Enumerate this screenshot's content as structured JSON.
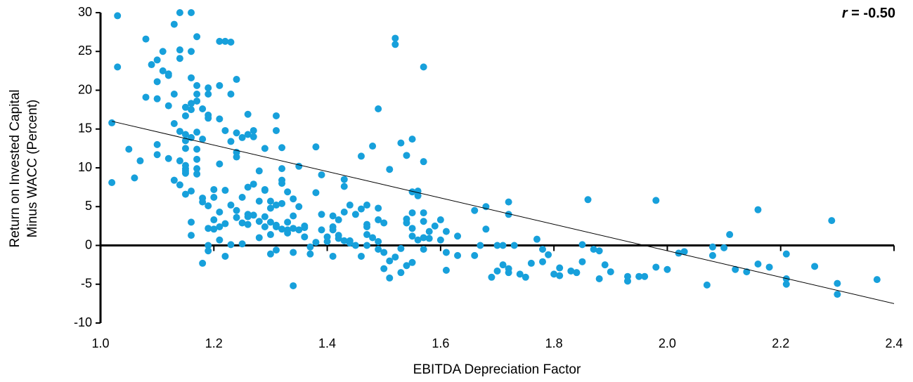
{
  "chart_data": {
    "type": "scatter",
    "xlabel": "EBITDA Depreciation Factor",
    "ylabel": [
      "Return on Invested Capital",
      "Minus WACC (Percent)"
    ],
    "annotation": {
      "symbol": "r",
      "text": "= -0.50"
    },
    "xlim": [
      1,
      2.4
    ],
    "xticks": [
      {
        "value": 1,
        "label": "1.0"
      },
      1.2,
      1.4,
      1.6,
      1.8,
      {
        "value": 2,
        "label": "2.0"
      },
      2.2,
      2.4
    ],
    "ylim": [
      -10,
      30
    ],
    "yticks": [
      -10,
      -5,
      0,
      5,
      10,
      15,
      20,
      25,
      30
    ],
    "trendline": {
      "x": [
        1.02,
        2.4
      ],
      "y": [
        16,
        -7.5
      ]
    },
    "series": [
      {
        "color": "#17a0db",
        "x": [
          1.02,
          1.02,
          1.03,
          1.05,
          1.06,
          1.03,
          1.07,
          1.08,
          1.08,
          1.1,
          1.09,
          1.1,
          1.1,
          1.1,
          1.1,
          1.11,
          1.11,
          1.12,
          1.12,
          1.12,
          1.13,
          1.12,
          1.13,
          1.13,
          1.13,
          1.14,
          1.14,
          1.14,
          1.14,
          1.14,
          1.14,
          1.15,
          1.15,
          1.15,
          1.15,
          1.15,
          1.15,
          1.15,
          1.15,
          1.15,
          1.15,
          1.16,
          1.16,
          1.16,
          1.16,
          1.16,
          1.16,
          1.16,
          1.16,
          1.16,
          1.17,
          1.17,
          1.17,
          1.17,
          1.17,
          1.17,
          1.17,
          1.17,
          1.17,
          1.18,
          1.18,
          1.18,
          1.18,
          1.18,
          1.19,
          1.19,
          1.19,
          1.19,
          1.19,
          1.19,
          1.19,
          1.19,
          1.2,
          1.2,
          1.2,
          1.2,
          1.21,
          1.21,
          1.21,
          1.21,
          1.21,
          1.21,
          1.21,
          1.22,
          1.22,
          1.22,
          1.22,
          1.22,
          1.23,
          1.23,
          1.23,
          1.23,
          1.23,
          1.24,
          1.24,
          1.24,
          1.24,
          1.24,
          1.24,
          1.25,
          1.25,
          1.25,
          1.25,
          1.26,
          1.26,
          1.26,
          1.26,
          1.26,
          1.26,
          1.27,
          1.27,
          1.27,
          1.27,
          1.28,
          1.28,
          1.28,
          1.28,
          1.29,
          1.29,
          1.29,
          1.29,
          1.29,
          1.3,
          1.3,
          1.3,
          1.3,
          1.3,
          1.31,
          1.31,
          1.31,
          1.31,
          1.31,
          1.31,
          1.32,
          1.32,
          1.32,
          1.32,
          1.32,
          1.32,
          1.33,
          1.33,
          1.33,
          1.33,
          1.34,
          1.34,
          1.34,
          1.35,
          1.35,
          1.49,
          1.52,
          1.52,
          1.57,
          1.57,
          1.48,
          1.51,
          1.46,
          1.38,
          1.35,
          1.39,
          1.43,
          1.43,
          1.53,
          1.54,
          1.55,
          1.55,
          1.56,
          1.56,
          1.55,
          1.57,
          1.47,
          1.46,
          1.45,
          1.44,
          1.43,
          1.41,
          1.42,
          1.39,
          1.38,
          1.36,
          1.36,
          1.39,
          1.41,
          1.4,
          1.41,
          1.42,
          1.42,
          1.43,
          1.44,
          1.44,
          1.45,
          1.46,
          1.47,
          1.47,
          1.47,
          1.48,
          1.49,
          1.49,
          1.5,
          1.5,
          1.5,
          1.51,
          1.51,
          1.52,
          1.53,
          1.54,
          1.54,
          1.55,
          1.54,
          1.55,
          1.57,
          1.57,
          1.58,
          1.58,
          1.57,
          1.59,
          1.55,
          1.56,
          1.49,
          1.49,
          1.53,
          1.47,
          1.34,
          1.34,
          1.36,
          1.37,
          1.37,
          1.38,
          1.4,
          1.41,
          1.6,
          1.61,
          1.61,
          1.6,
          1.61,
          1.63,
          1.63,
          1.66,
          1.66,
          1.67,
          1.68,
          1.68,
          1.69,
          1.7,
          1.7,
          1.71,
          1.71,
          1.72,
          1.72,
          1.72,
          1.72,
          1.73,
          1.74,
          1.75,
          1.76,
          1.77,
          1.78,
          1.78,
          1.79,
          1.8,
          1.81,
          1.81,
          1.83,
          1.84,
          1.85,
          1.85,
          1.86,
          1.87,
          1.88,
          1.88,
          1.89,
          1.9,
          1.93,
          1.93,
          1.95,
          1.96,
          1.98,
          1.98,
          2.0,
          2.02,
          2.03,
          2.07,
          2.08,
          2.08,
          2.1,
          2.11,
          2.12,
          2.14,
          2.16,
          2.16,
          2.18,
          2.21,
          2.21,
          2.21,
          2.26,
          2.29,
          2.3,
          2.3,
          2.37
        ],
        "y": [
          8.1,
          15.8,
          23.0,
          12.4,
          8.7,
          29.6,
          10.9,
          26.6,
          19.1,
          18.9,
          23.3,
          13.0,
          11.7,
          21.1,
          23.9,
          25.0,
          22.5,
          22.1,
          18.0,
          11.2,
          28.5,
          21.9,
          15.7,
          8.4,
          19.5,
          14.7,
          25.2,
          30.0,
          24.1,
          7.8,
          10.9,
          14.3,
          17.8,
          16.7,
          13.5,
          12.5,
          9.6,
          6.6,
          9.9,
          9.3,
          10.3,
          17.5,
          3.0,
          21.6,
          18.3,
          13.9,
          1.3,
          25.0,
          7.0,
          30.0,
          26.9,
          19.5,
          18.6,
          14.6,
          12.4,
          9.2,
          20.6,
          11.1,
          9.9,
          -2.3,
          17.6,
          6.1,
          13.7,
          5.6,
          2.2,
          16.8,
          16.4,
          20.3,
          19.5,
          5.1,
          0,
          -0.7,
          7.2,
          6.2,
          3.3,
          2.1,
          26.3,
          20.6,
          16.3,
          10.5,
          2.4,
          4.3,
          0.7,
          26.3,
          14.8,
          7.1,
          2.8,
          -1.4,
          13.4,
          26.2,
          19.5,
          5.2,
          0.1,
          4.5,
          21.4,
          14.5,
          11.4,
          3.6,
          12.0,
          13.9,
          2.9,
          0.2,
          6.2,
          3.7,
          2.7,
          7.5,
          16.9,
          4.0,
          14.3,
          7.9,
          14.0,
          3.9,
          14.8,
          1.0,
          9.6,
          3.1,
          5.7,
          7.2,
          12.5,
          7.1,
          2.4,
          3.7,
          1.4,
          4.8,
          -1.1,
          3.0,
          5.7,
          -0.6,
          14.8,
          16.7,
          2.4,
          5.2,
          2.6,
          9.9,
          12.6,
          2.1,
          8.4,
          5.4,
          8.0,
          3.0,
          1.6,
          2.0,
          6.9,
          2.2,
          6.0,
          3.8,
          2.0,
          5.0,
          17.6,
          26.7,
          25.9,
          23.0,
          10.8,
          12.8,
          9.8,
          11.5,
          12.7,
          10.2,
          9.1,
          8.5,
          7.6,
          13.2,
          11.6,
          13.7,
          6.9,
          7.0,
          6.4,
          4.2,
          4.2,
          5.2,
          4.7,
          4.0,
          5.2,
          4.3,
          3.8,
          3.3,
          4.0,
          6.8,
          2.5,
          1.1,
          2.0,
          2.4,
          1.1,
          2.0,
          0.9,
          1.3,
          0.6,
          0.3,
          0.6,
          0,
          -1.4,
          2.4,
          2.7,
          1.4,
          1.0,
          4.8,
          3.3,
          2.9,
          -0.9,
          -3.0,
          -2.0,
          -4.2,
          -1.5,
          -3.5,
          2.9,
          3.4,
          2.2,
          -2.6,
          -2.2,
          -0.5,
          1.0,
          1.8,
          0.9,
          3.1,
          2.5,
          1.2,
          0.7,
          -0.5,
          0.5,
          -0.4,
          0,
          -5.2,
          -0.9,
          2.3,
          -0.2,
          -1.1,
          0.4,
          0.5,
          -1.4,
          3.3,
          1.8,
          -3.2,
          0.7,
          -0.9,
          1.2,
          -1.3,
          4.5,
          -1.3,
          0,
          5.0,
          2.1,
          -4.1,
          0,
          -3.3,
          0,
          -2.5,
          -3.0,
          5.6,
          4.0,
          -3.5,
          0,
          -3.7,
          -4.1,
          -2.3,
          0.8,
          -0.5,
          -2.1,
          -1.2,
          -3.7,
          -2.9,
          -3.9,
          -3.3,
          -3.5,
          -2.1,
          0.1,
          5.9,
          -0.5,
          -4.3,
          -0.7,
          -2.5,
          -3.4,
          -4.6,
          -4.0,
          -4.0,
          -4.0,
          -2.8,
          5.8,
          -3.1,
          -1.0,
          -0.8,
          -5.1,
          -1.3,
          -0.2,
          -0.3,
          1.4,
          -3.1,
          -3.4,
          4.6,
          -2.4,
          -2.8,
          -1.1,
          -4.3,
          -5.0,
          -2.7,
          3.2,
          -6.3,
          -4.9,
          -4.4
        ]
      }
    ]
  }
}
